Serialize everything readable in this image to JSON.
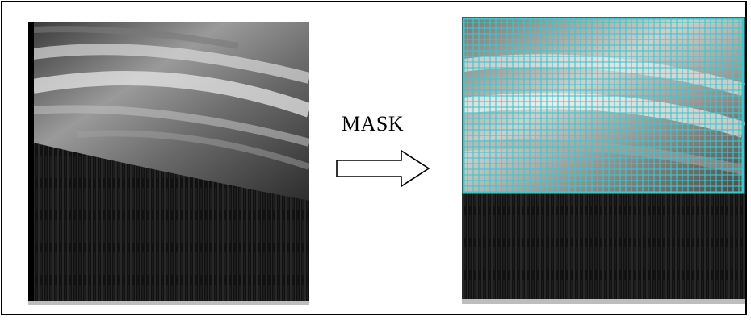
{
  "caption": "MASK",
  "colors": {
    "grid_cyan": "#3cc8c8",
    "background": "#ffffff",
    "outline": "#000000"
  },
  "icons": [
    "right-arrow-icon"
  ]
}
